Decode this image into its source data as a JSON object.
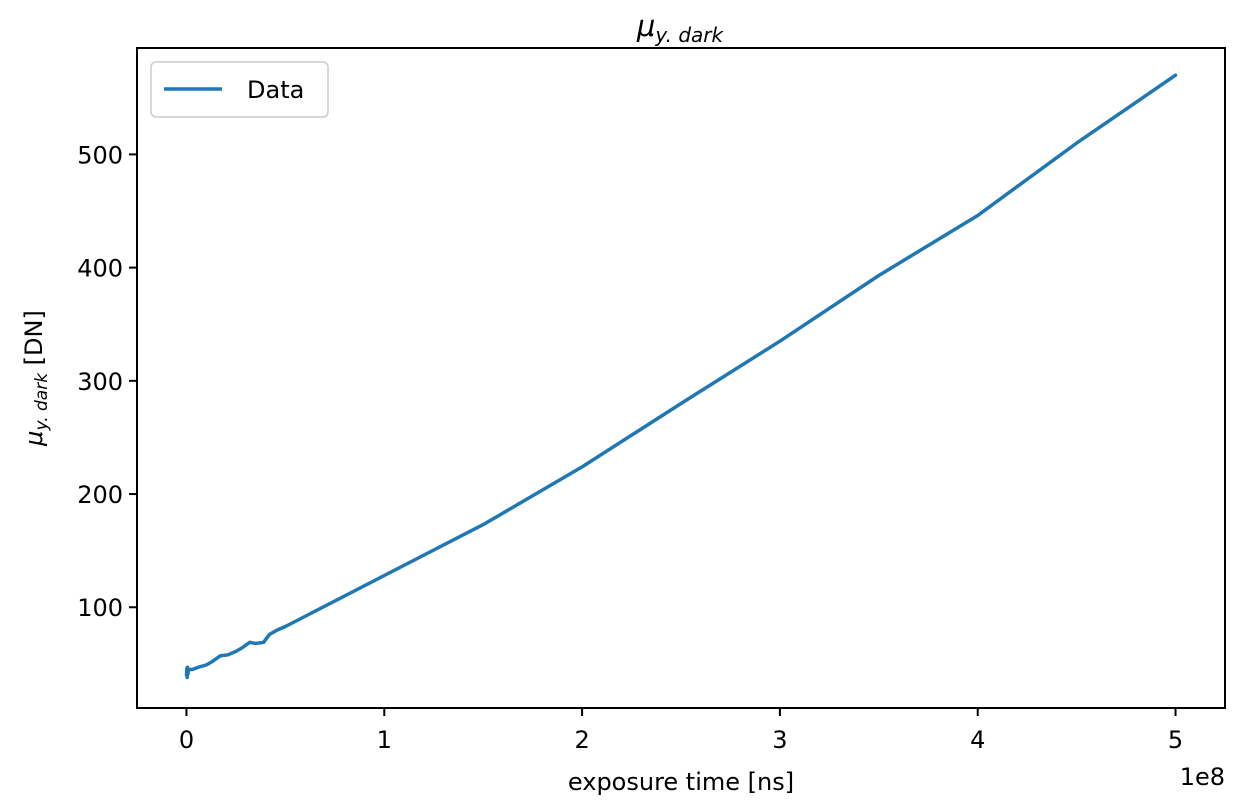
{
  "chart_data": {
    "type": "line",
    "title": {
      "base": "μ",
      "sub": "y. dark"
    },
    "xlabel": "exposure time [ns]",
    "ylabel": {
      "base": "μ",
      "sub": "y. dark",
      "suffix": " [DN]"
    },
    "x_offset_text": "1e8",
    "xlim": [
      -0.25,
      5.25
    ],
    "ylim": [
      11,
      594
    ],
    "x_scale_factor": 100000000,
    "xticks": [
      0,
      1,
      2,
      3,
      4,
      5
    ],
    "yticks": [
      100,
      200,
      300,
      400,
      500
    ],
    "grid": false,
    "legend_position": "upper-left",
    "color": "#1f77b4",
    "series": [
      {
        "name": "Data",
        "x": [
          0,
          0.002,
          0.004,
          0.006,
          0.008,
          0.01,
          0.03,
          0.06,
          0.1,
          0.13,
          0.17,
          0.21,
          0.25,
          0.28,
          0.32,
          0.35,
          0.39,
          0.42,
          0.46,
          0.5,
          1.0,
          1.5,
          2.0,
          2.5,
          3.0,
          3.5,
          4.0,
          4.5,
          5.0
        ],
        "y": [
          40,
          46,
          38,
          47,
          41,
          45,
          45,
          47,
          49,
          52,
          57,
          58,
          61,
          64,
          69,
          68,
          69,
          76,
          80,
          83,
          128,
          173,
          224,
          280,
          335,
          393,
          446,
          510,
          570
        ]
      }
    ]
  }
}
